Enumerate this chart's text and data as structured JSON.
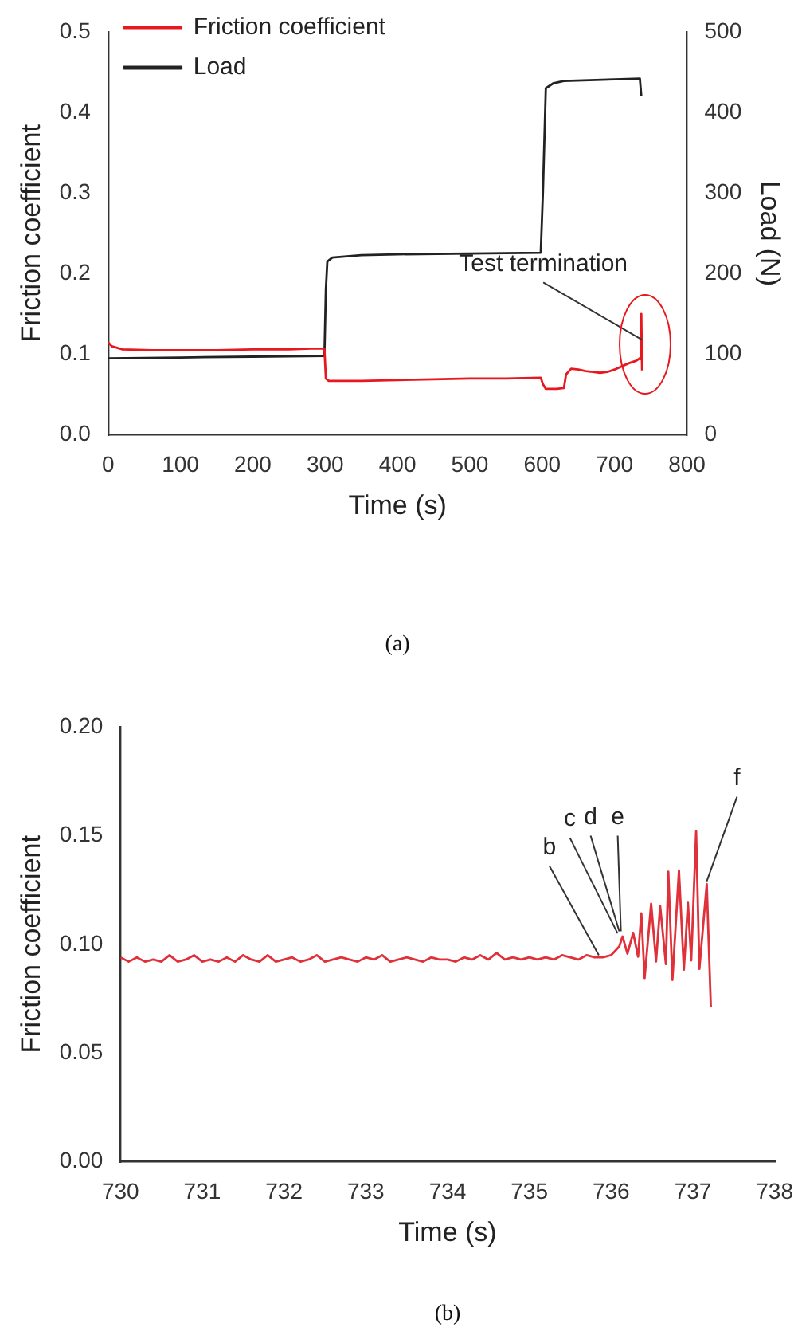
{
  "chart_data": [
    {
      "type": "line",
      "xlabel": "Time (s)",
      "ylabel": "Friction coefficient",
      "y2label": "Load (N)",
      "xlim": [
        0,
        800
      ],
      "xticks": [
        0,
        100,
        200,
        300,
        400,
        500,
        600,
        700,
        800
      ],
      "ylim": [
        0,
        0.5
      ],
      "yticks": [
        {
          "value": 0,
          "label": "0.0"
        },
        0.1,
        0.2,
        0.3,
        0.4,
        0.5
      ],
      "y2lim": [
        0,
        500
      ],
      "y2ticks": [
        0,
        100,
        200,
        300,
        400,
        500
      ],
      "grid": false,
      "legend": "top left",
      "marker": "none",
      "line_style": "solid",
      "series": [
        {
          "name": "Friction coefficient",
          "color": "#e8191e",
          "x": [
            0,
            5,
            20,
            60,
            100,
            150,
            200,
            250,
            280,
            299,
            301,
            305,
            350,
            400,
            450,
            500,
            550,
            598,
            601,
            605,
            620,
            630,
            633,
            640,
            650,
            660,
            670,
            680,
            690,
            700,
            710,
            720,
            730,
            735,
            736,
            737,
            738
          ],
          "values": [
            0.115,
            0.11,
            0.106,
            0.105,
            0.105,
            0.105,
            0.106,
            0.106,
            0.107,
            0.107,
            0.07,
            0.067,
            0.067,
            0.068,
            0.069,
            0.07,
            0.07,
            0.071,
            0.063,
            0.057,
            0.057,
            0.058,
            0.075,
            0.082,
            0.081,
            0.079,
            0.078,
            0.077,
            0.078,
            0.081,
            0.085,
            0.089,
            0.092,
            0.095,
            0.094,
            0.15,
            0.08
          ]
        },
        {
          "name": "Load",
          "color": "#222222",
          "axis": "y2",
          "x": [
            0,
            100,
            200,
            299,
            301,
            303,
            310,
            350,
            400,
            500,
            598,
            601,
            605,
            615,
            630,
            700,
            735,
            737
          ],
          "values": [
            95,
            96,
            97,
            98,
            180,
            215,
            220,
            223,
            224,
            225,
            226,
            300,
            430,
            436,
            439,
            441,
            442,
            420
          ]
        }
      ],
      "annotations": [
        "(a)",
        {
          "text": "Test termination",
          "x": 738,
          "y": 0.118
        }
      ]
    },
    {
      "type": "line",
      "xlabel": "Time (s)",
      "ylabel": "Friction coefficient",
      "xlim": [
        730,
        738
      ],
      "xticks": [
        730,
        731,
        732,
        733,
        734,
        735,
        736,
        737,
        738
      ],
      "ylim": [
        0,
        0.2
      ],
      "yticks": [
        {
          "value": 0,
          "label": "0.00"
        },
        {
          "value": 0.05,
          "label": "0.05"
        },
        {
          "value": 0.1,
          "label": "0.10"
        },
        {
          "value": 0.15,
          "label": "0.15"
        },
        {
          "value": 0.2,
          "label": "0.20"
        }
      ],
      "grid": false,
      "legend": false,
      "marker": "none",
      "line_style": "solid",
      "series": [
        {
          "color": "#e0303a",
          "x": [
            730,
            730.1,
            730.2,
            730.3,
            730.4,
            730.5,
            730.6,
            730.7,
            730.8,
            730.9,
            731,
            731.1,
            731.2,
            731.3,
            731.4,
            731.5,
            731.6,
            731.7,
            731.8,
            731.9,
            732,
            732.1,
            732.2,
            732.3,
            732.4,
            732.5,
            732.6,
            732.7,
            732.8,
            732.9,
            733,
            733.1,
            733.2,
            733.3,
            733.4,
            733.5,
            733.6,
            733.7,
            733.8,
            733.9,
            734,
            734.1,
            734.2,
            734.3,
            734.4,
            734.5,
            734.6,
            734.7,
            734.8,
            734.9,
            735,
            735.1,
            735.2,
            735.3,
            735.4,
            735.5,
            735.6,
            735.7,
            735.8,
            735.9,
            736,
            736.05,
            736.1,
            736.14,
            736.2,
            736.27,
            736.33,
            736.37,
            736.41,
            736.49,
            736.55,
            736.6,
            736.67,
            736.7,
            736.75,
            736.83,
            736.89,
            736.94,
            736.98,
            737.04,
            737.08,
            737.17,
            737.22
          ],
          "values": [
            0.094,
            0.092,
            0.094,
            0.092,
            0.093,
            0.092,
            0.095,
            0.092,
            0.093,
            0.095,
            0.092,
            0.093,
            0.092,
            0.094,
            0.092,
            0.095,
            0.093,
            0.092,
            0.095,
            0.092,
            0.093,
            0.094,
            0.092,
            0.093,
            0.095,
            0.092,
            0.093,
            0.094,
            0.093,
            0.092,
            0.094,
            0.093,
            0.095,
            0.092,
            0.093,
            0.094,
            0.093,
            0.092,
            0.094,
            0.093,
            0.093,
            0.092,
            0.094,
            0.093,
            0.095,
            0.093,
            0.096,
            0.093,
            0.094,
            0.093,
            0.094,
            0.093,
            0.094,
            0.093,
            0.095,
            0.094,
            0.093,
            0.095,
            0.094,
            0.094,
            0.095,
            0.097,
            0.099,
            0.1036,
            0.0957,
            0.1053,
            0.0943,
            0.1143,
            0.0845,
            0.1187,
            0.0921,
            0.1177,
            0.0909,
            0.1334,
            0.0836,
            0.134,
            0.0883,
            0.1191,
            0.0926,
            0.152,
            0.0887,
            0.1277,
            0.0713
          ]
        }
      ],
      "annotations": [
        "(b)",
        {
          "text": "b",
          "x": 735.85,
          "y": 0.095
        },
        {
          "text": "c",
          "x": 736.08,
          "y": 0.105
        },
        {
          "text": "d",
          "x": 736.1,
          "y": 0.106
        },
        {
          "text": "e",
          "x": 736.12,
          "y": 0.106
        },
        {
          "text": "f",
          "x": 737.17,
          "y": 0.129
        }
      ]
    }
  ]
}
